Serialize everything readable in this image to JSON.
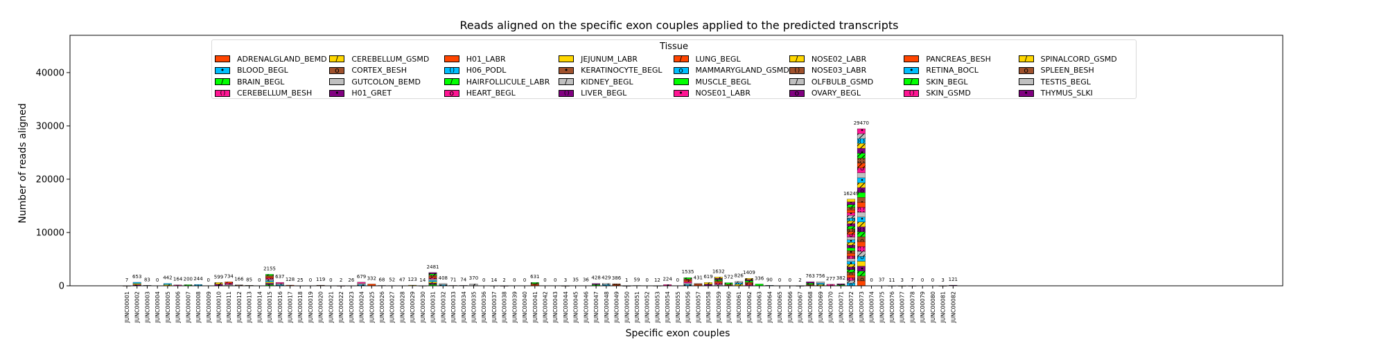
{
  "chart_data": {
    "type": "bar",
    "stacked": true,
    "title": "Reads aligned on the specific exon couples applied to the predicted transcripts",
    "xlabel": "Specific exon couples",
    "ylabel": "Number of reads aligned",
    "ylim": [
      0,
      47000
    ],
    "yticks": [
      0,
      10000,
      20000,
      30000,
      40000
    ],
    "grid": false,
    "legend": {
      "title": "Tissue",
      "placement": "upper-center",
      "entries": [
        {
          "name": "ADRENALGLAND_BEMD",
          "color": "#ff4500",
          "hatch": "none"
        },
        {
          "name": "BLOOD_BEGL",
          "color": "#00bfff",
          "hatch": "dot"
        },
        {
          "name": "BRAIN_BEGL",
          "color": "#00ff00",
          "hatch": "slash"
        },
        {
          "name": "CEREBELLUM_BESH",
          "color": "#ff1493",
          "hatch": "paren"
        },
        {
          "name": "CEREBELLUM_GSMD",
          "color": "#ffd700",
          "hatch": "slash"
        },
        {
          "name": "CORTEX_BESH",
          "color": "#a0522d",
          "hatch": "o"
        },
        {
          "name": "GUTCOLON_BEMD",
          "color": "#c0c0c0",
          "hatch": "none"
        },
        {
          "name": "H01_GRET",
          "color": "#800080",
          "hatch": "dot"
        },
        {
          "name": "H01_LABR",
          "color": "#ff4500",
          "hatch": "none"
        },
        {
          "name": "H06_PODL",
          "color": "#00bfff",
          "hatch": "paren"
        },
        {
          "name": "HAIRFOLLICULE_LABR",
          "color": "#00ff00",
          "hatch": "slash"
        },
        {
          "name": "HEART_BEGL",
          "color": "#ff1493",
          "hatch": "o"
        },
        {
          "name": "JEJUNUM_LABR",
          "color": "#ffd700",
          "hatch": "none"
        },
        {
          "name": "KERATINOCYTE_BEGL",
          "color": "#a0522d",
          "hatch": "dot"
        },
        {
          "name": "KIDNEY_BEGL",
          "color": "#c0c0c0",
          "hatch": "slash"
        },
        {
          "name": "LIVER_BEGL",
          "color": "#800080",
          "hatch": "paren"
        },
        {
          "name": "LUNG_BEGL",
          "color": "#ff4500",
          "hatch": "slash"
        },
        {
          "name": "MAMMARYGLAND_GSMD",
          "color": "#00bfff",
          "hatch": "o"
        },
        {
          "name": "MUSCLE_BEGL",
          "color": "#00ff00",
          "hatch": "none"
        },
        {
          "name": "NOSE01_LABR",
          "color": "#ff1493",
          "hatch": "dot"
        },
        {
          "name": "NOSE02_LABR",
          "color": "#ffd700",
          "hatch": "slash"
        },
        {
          "name": "NOSE03_LABR",
          "color": "#a0522d",
          "hatch": "paren"
        },
        {
          "name": "OLFBULB_GSMD",
          "color": "#c0c0c0",
          "hatch": "slash"
        },
        {
          "name": "OVARY_BEGL",
          "color": "#800080",
          "hatch": "o"
        },
        {
          "name": "PANCREAS_BESH",
          "color": "#ff4500",
          "hatch": "none"
        },
        {
          "name": "RETINA_BOCL",
          "color": "#00bfff",
          "hatch": "dot"
        },
        {
          "name": "SKIN_BEGL",
          "color": "#00ff00",
          "hatch": "slash"
        },
        {
          "name": "SKIN_GSMD",
          "color": "#ff1493",
          "hatch": "paren"
        },
        {
          "name": "SPINALCORD_GSMD",
          "color": "#ffd700",
          "hatch": "slash"
        },
        {
          "name": "SPLEEN_BESH",
          "color": "#a0522d",
          "hatch": "o"
        },
        {
          "name": "TESTIS_BEGL",
          "color": "#c0c0c0",
          "hatch": "none"
        },
        {
          "name": "THYMUS_SLKI",
          "color": "#800080",
          "hatch": "dot"
        }
      ]
    },
    "categories": [
      "JUNC00001",
      "JUNC00002",
      "JUNC00003",
      "JUNC00004",
      "JUNC00005",
      "JUNC00006",
      "JUNC00007",
      "JUNC00008",
      "JUNC00009",
      "JUNC00010",
      "JUNC00011",
      "JUNC00012",
      "JUNC00013",
      "JUNC00014",
      "JUNC00015",
      "JUNC00016",
      "JUNC00017",
      "JUNC00018",
      "JUNC00019",
      "JUNC00020",
      "JUNC00021",
      "JUNC00022",
      "JUNC00023",
      "JUNC00024",
      "JUNC00025",
      "JUNC00026",
      "JUNC00027",
      "JUNC00028",
      "JUNC00029",
      "JUNC00030",
      "JUNC00031",
      "JUNC00032",
      "JUNC00033",
      "JUNC00034",
      "JUNC00035",
      "JUNC00036",
      "JUNC00037",
      "JUNC00038",
      "JUNC00039",
      "JUNC00040",
      "JUNC00041",
      "JUNC00042",
      "JUNC00043",
      "JUNC00044",
      "JUNC00045",
      "JUNC00046",
      "JUNC00047",
      "JUNC00048",
      "JUNC00049",
      "JUNC00050",
      "JUNC00051",
      "JUNC00052",
      "JUNC00053",
      "JUNC00054",
      "JUNC00055",
      "JUNC00056",
      "JUNC00057",
      "JUNC00058",
      "JUNC00059",
      "JUNC00060",
      "JUNC00061",
      "JUNC00062",
      "JUNC00063",
      "JUNC00064",
      "JUNC00065",
      "JUNC00066",
      "JUNC00067",
      "JUNC00068",
      "JUNC00069",
      "JUNC00070",
      "JUNC00071",
      "JUNC00072",
      "JUNC00073",
      "JUNC00074",
      "JUNC00075",
      "JUNC00076",
      "JUNC00077",
      "JUNC00078",
      "JUNC00079",
      "JUNC00080",
      "JUNC00081",
      "JUNC00082"
    ],
    "totals": [
      7,
      653,
      83,
      0,
      442,
      164,
      200,
      244,
      0,
      599,
      734,
      166,
      85,
      0,
      2155,
      637,
      128,
      25,
      0,
      119,
      0,
      2,
      26,
      679,
      332,
      68,
      52,
      47,
      123,
      14,
      2481,
      408,
      71,
      74,
      370,
      0,
      14,
      2,
      0,
      0,
      631,
      0,
      0,
      3,
      35,
      36,
      428,
      429,
      386,
      1,
      59,
      0,
      12,
      224,
      0,
      1535,
      431,
      619,
      1632,
      572,
      826,
      1409,
      336,
      90,
      0,
      0,
      2,
      763,
      756,
      277,
      382,
      16249,
      29470,
      0,
      37,
      11,
      3,
      7,
      0,
      0,
      3,
      121
    ],
    "data_labels": [
      "7",
      "653",
      "83",
      "0",
      "442",
      "164",
      "200",
      "244",
      "0",
      "599",
      "734",
      "166",
      "85",
      "0",
      "2155",
      "637",
      "128",
      "25",
      "0",
      "119",
      "0",
      "2",
      "26",
      "679",
      "332",
      "68",
      "52",
      "47",
      "123",
      "14",
      "2481",
      "408",
      "71",
      "74",
      "370",
      "0",
      "14",
      "2",
      "0",
      "0",
      "631",
      "0",
      "0",
      "3",
      "35",
      "36",
      "428",
      "429",
      "386",
      "1",
      "59",
      "0",
      "12",
      "224",
      "0",
      "1535",
      "431",
      "619",
      "1632",
      "572",
      "826",
      "1409",
      "336",
      "90",
      "0",
      "0",
      "2",
      "763",
      "756",
      "277",
      "382",
      "16249",
      "29470",
      "0",
      "37",
      "11",
      "3",
      "7",
      "0",
      "0",
      "3",
      "121"
    ]
  }
}
